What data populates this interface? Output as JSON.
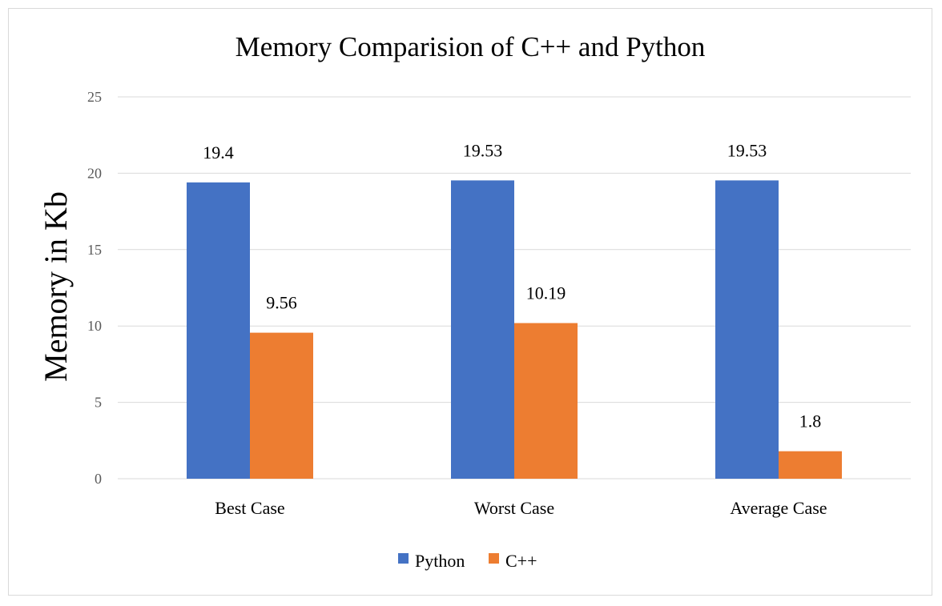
{
  "chart_data": {
    "type": "bar",
    "title": "Memory Comparision of C++ and Python",
    "xlabel": "",
    "ylabel": "Memory in Kb",
    "categories": [
      "Best Case",
      "Worst Case",
      "Average Case"
    ],
    "series": [
      {
        "name": "Python",
        "values": [
          19.4,
          19.53,
          19.53
        ],
        "color": "#4472c4"
      },
      {
        "name": "C++",
        "values": [
          9.56,
          10.19,
          1.8
        ],
        "color": "#ed7d31"
      }
    ],
    "ylim": [
      0,
      25
    ],
    "yticks": [
      0,
      5,
      10,
      15,
      20,
      25
    ],
    "grid": true,
    "legend": "bottom",
    "data_labels": true
  }
}
